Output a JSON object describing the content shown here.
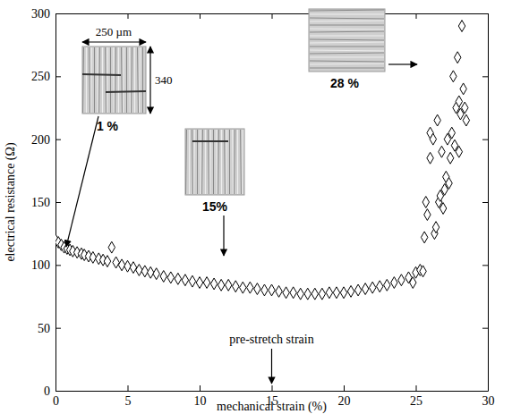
{
  "chart_data": {
    "type": "scatter",
    "x_label": "mechanical strain (%)",
    "y_label": "electrical resistance (Ω)",
    "xlim": [
      0,
      30
    ],
    "xticks": [
      0,
      5,
      10,
      15,
      20,
      25,
      30
    ],
    "ylim": [
      0,
      300
    ],
    "yticks": [
      0,
      50,
      100,
      150,
      200,
      250,
      300
    ],
    "grid": false,
    "annotations": [
      {
        "text": "250 µm"
      },
      {
        "text": "340"
      },
      {
        "text": "1 %"
      },
      {
        "text": "15%"
      },
      {
        "text": "28 %"
      },
      {
        "text": "pre-stretch strain",
        "x": 15
      }
    ],
    "x": [
      0,
      0.2,
      0.4,
      0.6,
      0.8,
      1,
      1.2,
      1.5,
      1.8,
      2,
      2.3,
      2.6,
      3,
      3.3,
      3.6,
      3.9,
      4.2,
      4.6,
      5,
      5.4,
      5.8,
      6.2,
      6.6,
      7,
      7.5,
      8,
      8.5,
      9,
      9.5,
      10,
      10.5,
      11,
      11.5,
      12,
      12.5,
      13,
      13.5,
      14,
      14.5,
      15,
      15.5,
      16,
      16.5,
      17,
      17.5,
      18,
      18.5,
      19,
      19.5,
      20,
      20.5,
      21,
      21.5,
      22,
      22.5,
      23,
      23.5,
      24,
      24.5,
      24.8,
      25,
      25.3,
      25.5,
      25.6,
      25.7,
      25.8,
      26,
      26,
      26.2,
      26.3,
      26.4,
      26.5,
      26.6,
      26.7,
      26.8,
      26.9,
      27,
      27.1,
      27.2,
      27.3,
      27.4,
      27.5,
      27.6,
      27.7,
      27.8,
      27.9,
      28,
      28,
      28.1,
      28.2,
      28.3,
      28.4,
      28.5
    ],
    "series": [
      {
        "color": "#000000",
        "marker": "diamond",
        "values": [
          120,
          118,
          116,
          114,
          113,
          112,
          111,
          110,
          109,
          108,
          107,
          106,
          105,
          104,
          103,
          114,
          102,
          100,
          99,
          98,
          96,
          95,
          94,
          93,
          91,
          90,
          89,
          88,
          87,
          86,
          86,
          85,
          84,
          84,
          83,
          82,
          82,
          81,
          80,
          80,
          79,
          78,
          78,
          77,
          77,
          77,
          77,
          78,
          78,
          78,
          79,
          80,
          81,
          82,
          83,
          84,
          86,
          88,
          90,
          86,
          94,
          96,
          95,
          122,
          150,
          140,
          185,
          205,
          200,
          125,
          130,
          215,
          150,
          155,
          190,
          145,
          160,
          170,
          200,
          165,
          185,
          205,
          250,
          195,
          225,
          265,
          230,
          190,
          220,
          290,
          240,
          225,
          215
        ]
      }
    ]
  }
}
